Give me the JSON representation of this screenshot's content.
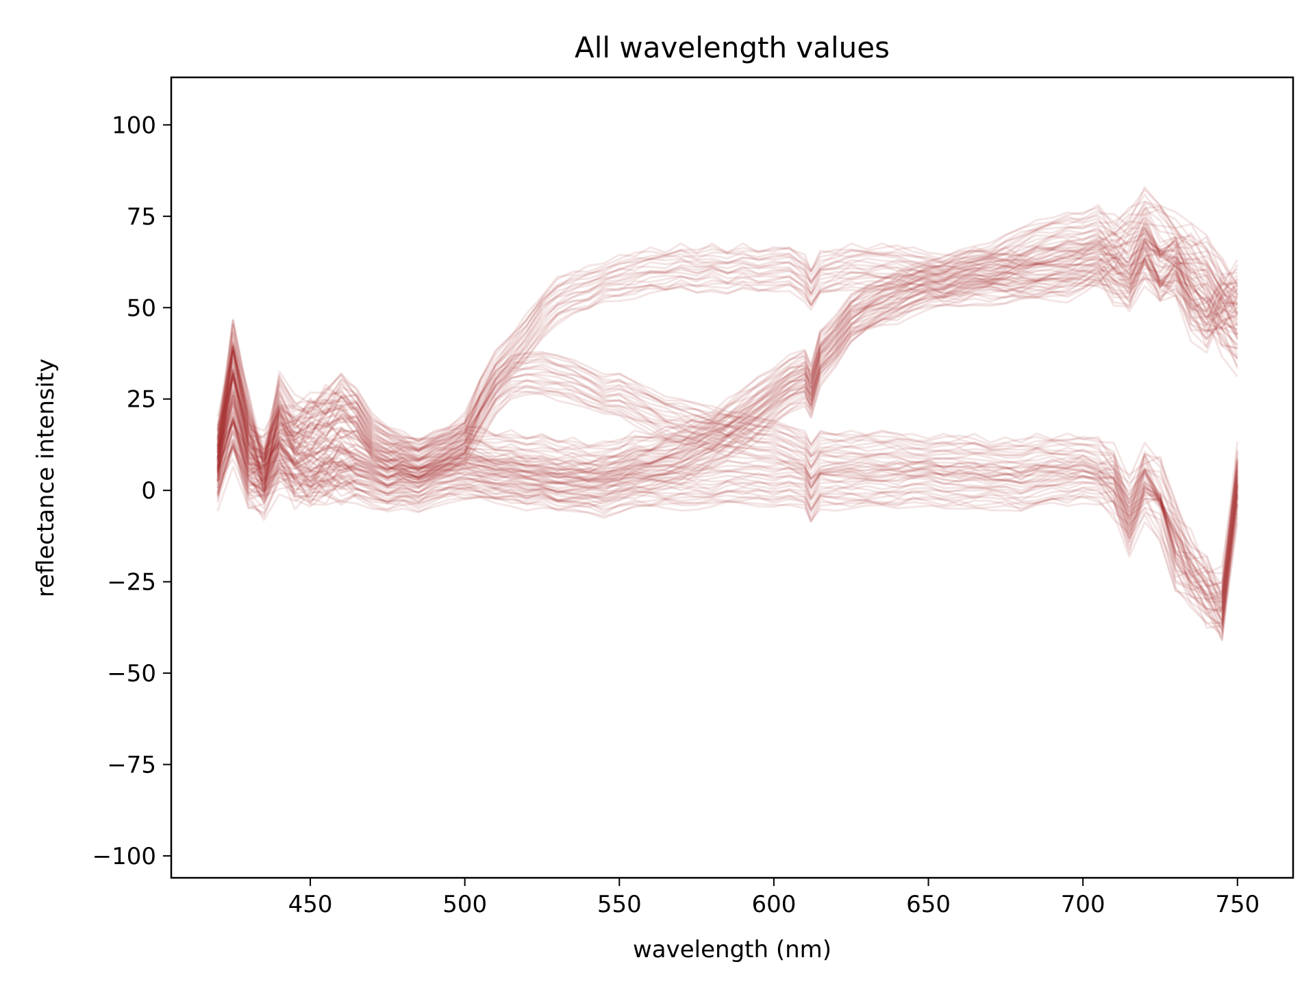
{
  "chart_data": {
    "type": "line",
    "title": "All wavelength values",
    "xlabel": "wavelength (nm)",
    "ylabel": "reflectance intensity",
    "xlim": [
      405,
      768
    ],
    "ylim": [
      -106,
      113
    ],
    "xticks": [
      450,
      500,
      550,
      600,
      650,
      700,
      750
    ],
    "yticks": [
      100,
      75,
      50,
      25,
      0,
      -25,
      -50,
      -75,
      -100
    ],
    "xtick_labels": [
      "450",
      "500",
      "550",
      "600",
      "650",
      "700",
      "750"
    ],
    "ytick_labels": [
      "100",
      "75",
      "50",
      "25",
      "0",
      "−25",
      "−50",
      "−75",
      "−100"
    ],
    "line_color": "#a52a2a",
    "line_alpha": 0.12,
    "grid": false,
    "legend": "none",
    "x": [
      420,
      425,
      430,
      435,
      440,
      445,
      450,
      455,
      460,
      465,
      470,
      475,
      480,
      485,
      490,
      495,
      500,
      505,
      510,
      515,
      520,
      525,
      530,
      535,
      540,
      545,
      550,
      555,
      560,
      565,
      570,
      575,
      580,
      585,
      590,
      595,
      600,
      605,
      610,
      612,
      615,
      620,
      625,
      630,
      635,
      640,
      645,
      650,
      655,
      660,
      665,
      670,
      675,
      680,
      685,
      690,
      695,
      700,
      705,
      710,
      715,
      720,
      725,
      730,
      735,
      740,
      745,
      750
    ],
    "series": [
      {
        "values": [
          8,
          40,
          20,
          5,
          25,
          18,
          20,
          22,
          25,
          22,
          15,
          12,
          10,
          8,
          10,
          12,
          15,
          25,
          32,
          37,
          42,
          48,
          52,
          54,
          55,
          57,
          58,
          59,
          60,
          60,
          61,
          60,
          61,
          60,
          61,
          60,
          60,
          61,
          58,
          55,
          59,
          60,
          61,
          61,
          61,
          61,
          60,
          60,
          58,
          59,
          60,
          60,
          60,
          59,
          60,
          61,
          62,
          62,
          62,
          63,
          60,
          65,
          58,
          60,
          50,
          45,
          52,
          55
        ]
      },
      {
        "values": [
          10,
          35,
          15,
          8,
          20,
          15,
          18,
          20,
          22,
          20,
          14,
          11,
          9,
          8,
          9,
          11,
          13,
          20,
          27,
          31,
          32,
          32,
          31,
          30,
          28,
          26,
          26,
          24,
          22,
          20,
          19,
          18,
          17,
          16,
          15,
          14,
          13,
          12,
          10,
          7,
          10,
          10,
          10,
          10,
          10,
          10,
          9,
          9,
          9,
          9,
          9,
          8,
          8,
          8,
          9,
          9,
          9,
          9,
          8,
          5,
          -5,
          5,
          0,
          -10,
          -20,
          -25,
          -30,
          5
        ]
      },
      {
        "values": [
          12,
          30,
          10,
          6,
          15,
          10,
          8,
          10,
          12,
          10,
          8,
          6,
          8,
          7,
          9,
          10,
          12,
          11,
          10,
          10,
          9,
          9,
          8,
          8,
          7,
          7,
          8,
          10,
          10,
          11,
          12,
          14,
          16,
          19,
          22,
          25,
          28,
          31,
          33,
          28,
          38,
          42,
          48,
          50,
          52,
          54,
          56,
          57,
          58,
          60,
          61,
          62,
          64,
          66,
          68,
          69,
          70,
          70,
          72,
          68,
          70,
          75,
          70,
          68,
          65,
          62,
          55,
          50
        ]
      },
      {
        "values": [
          5,
          20,
          5,
          2,
          10,
          5,
          4,
          5,
          6,
          5,
          3,
          2,
          3,
          2,
          4,
          5,
          6,
          5,
          4,
          4,
          3,
          3,
          2,
          2,
          2,
          3,
          4,
          5,
          6,
          7,
          8,
          10,
          12,
          14,
          17,
          20,
          24,
          27,
          29,
          26,
          35,
          40,
          46,
          49,
          51,
          52,
          54,
          55,
          56,
          56,
          57,
          57,
          57,
          58,
          58,
          58,
          58,
          60,
          62,
          58,
          55,
          65,
          60,
          62,
          55,
          52,
          45,
          40
        ]
      },
      {
        "values": [
          3,
          15,
          3,
          0,
          8,
          3,
          2,
          3,
          4,
          3,
          1,
          0,
          1,
          0,
          2,
          3,
          3,
          3,
          2,
          2,
          1,
          1,
          0,
          0,
          0,
          -1,
          0,
          1,
          1,
          1,
          1,
          1,
          1,
          2,
          2,
          2,
          2,
          2,
          1,
          -3,
          1,
          1,
          1,
          1,
          1,
          1,
          2,
          2,
          1,
          1,
          1,
          1,
          1,
          0,
          1,
          2,
          2,
          3,
          2,
          0,
          -10,
          0,
          -5,
          -20,
          -25,
          -30,
          -35,
          0
        ]
      }
    ]
  }
}
